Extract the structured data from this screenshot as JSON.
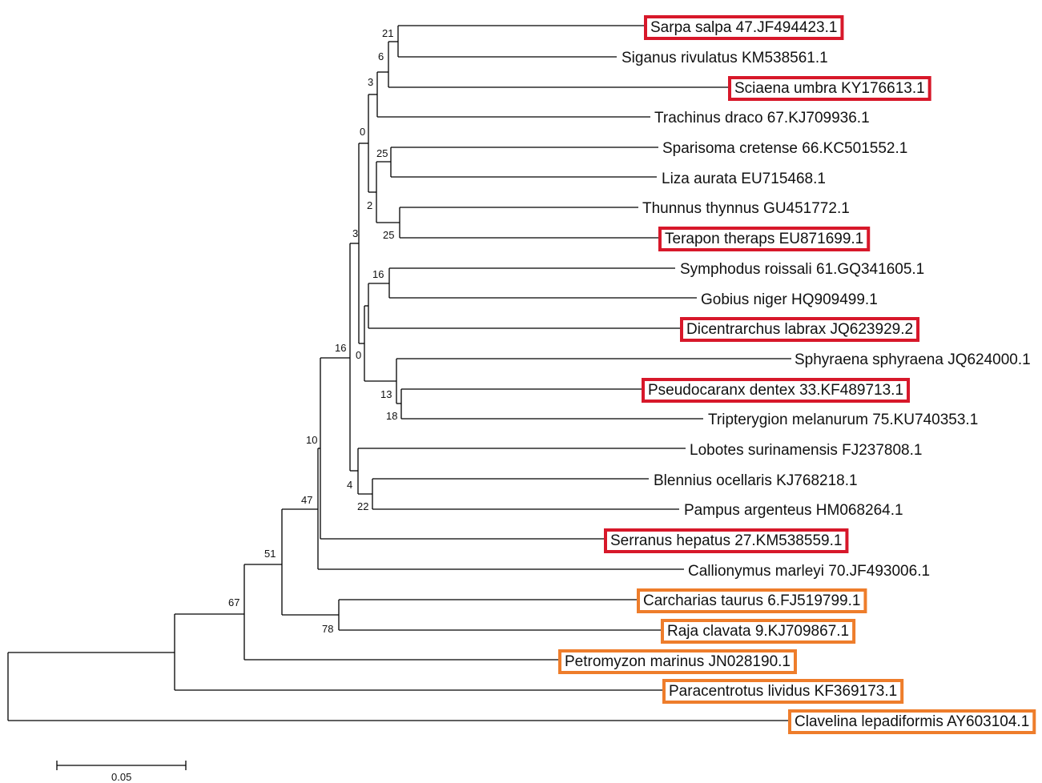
{
  "tree": {
    "leaves": [
      {
        "label": "Sarpa salpa 47.JF494423.1",
        "highlight": "red"
      },
      {
        "label": "Siganus rivulatus KM538561.1",
        "highlight": null
      },
      {
        "label": "Sciaena umbra KY176613.1",
        "highlight": "red"
      },
      {
        "label": "Trachinus draco 67.KJ709936.1",
        "highlight": null
      },
      {
        "label": "Sparisoma cretense 66.KC501552.1",
        "highlight": null
      },
      {
        "label": "Liza aurata EU715468.1",
        "highlight": null
      },
      {
        "label": "Thunnus thynnus GU451772.1",
        "highlight": null
      },
      {
        "label": "Terapon theraps EU871699.1",
        "highlight": "red"
      },
      {
        "label": "Symphodus roissali 61.GQ341605.1",
        "highlight": null
      },
      {
        "label": "Gobius niger HQ909499.1",
        "highlight": null
      },
      {
        "label": "Dicentrarchus labrax JQ623929.2",
        "highlight": "red"
      },
      {
        "label": "Sphyraena sphyraena JQ624000.1",
        "highlight": null
      },
      {
        "label": "Pseudocaranx dentex 33.KF489713.1",
        "highlight": "red"
      },
      {
        "label": "Tripterygion melanurum 75.KU740353.1",
        "highlight": null
      },
      {
        "label": "Lobotes surinamensis FJ237808.1",
        "highlight": null
      },
      {
        "label": "Blennius ocellaris KJ768218.1",
        "highlight": null
      },
      {
        "label": "Pampus argenteus HM068264.1",
        "highlight": null
      },
      {
        "label": "Serranus hepatus 27.KM538559.1",
        "highlight": "red"
      },
      {
        "label": "Callionymus marleyi 70.JF493006.1",
        "highlight": null
      },
      {
        "label": "Carcharias taurus 6.FJ519799.1",
        "highlight": "orange"
      },
      {
        "label": "Raja clavata 9.KJ709867.1",
        "highlight": "orange"
      },
      {
        "label": "Petromyzon marinus JN028190.1",
        "highlight": "orange"
      },
      {
        "label": "Paracentrotus lividus KF369173.1",
        "highlight": "orange"
      },
      {
        "label": "Clavelina lepadiformis AY603104.1",
        "highlight": "orange"
      }
    ],
    "support_values": [
      "21",
      "6",
      "3",
      "0",
      "25",
      "2",
      "25",
      "3",
      "16",
      "0",
      "13",
      "18",
      "16",
      "10",
      "4",
      "22",
      "47",
      "51",
      "78",
      "67"
    ],
    "scale_bar": {
      "label": "0.05"
    }
  },
  "colors": {
    "branch": "#000000",
    "text": "#111111",
    "highlight_red": "#d7182a",
    "highlight_orange": "#ee7d2b"
  }
}
